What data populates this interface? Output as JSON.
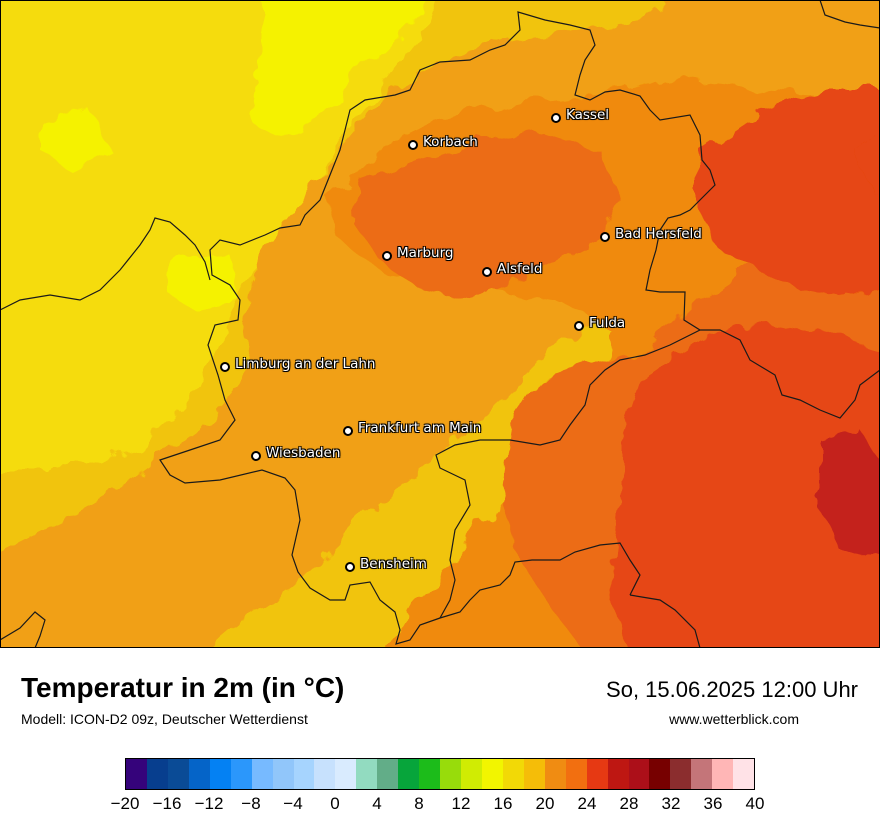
{
  "map": {
    "colors": {
      "yellow_light": "#f5f200",
      "yellow": "#f5dc0c",
      "gold": "#f1c40f",
      "orange_light": "#f1a012",
      "orange": "#f08a10",
      "orange_dark": "#ec6c12",
      "red_orange": "#e64612",
      "red": "#c4201a",
      "dark_red": "#a01418",
      "border": "#1a1a1a"
    },
    "cities": [
      {
        "name": "Kassel"
      },
      {
        "name": "Korbach"
      },
      {
        "name": "Bad Hersfeld"
      },
      {
        "name": "Marburg"
      },
      {
        "name": "Alsfeld"
      },
      {
        "name": "Fulda"
      },
      {
        "name": "Limburg an der Lahn"
      },
      {
        "name": "Frankfurt am Main"
      },
      {
        "name": "Wiesbaden"
      },
      {
        "name": "Bensheim"
      }
    ]
  },
  "footer": {
    "title": "Temperatur in 2m (in °C)",
    "model": "Modell: ICON-D2 09z, Deutscher Wetterdienst",
    "datetime": "So, 15.06.2025 12:00 Uhr",
    "website": "www.wetterblick.com"
  },
  "legend": {
    "min": -20,
    "max": 40,
    "tick_labels": [
      "−20",
      "−16",
      "−12",
      "−8",
      "−4",
      "0",
      "4",
      "8",
      "12",
      "16",
      "20",
      "24",
      "28",
      "32",
      "36",
      "40"
    ],
    "colors": [
      "#35037b",
      "#073e8e",
      "#0a4b96",
      "#0564c8",
      "#0481f3",
      "#2b97fb",
      "#77baff",
      "#91c6fa",
      "#a6d4fe",
      "#c7e1fd",
      "#d9ebfe",
      "#92dbc0",
      "#62ad88",
      "#07a53b",
      "#1cbc1a",
      "#98dc0b",
      "#d0ec03",
      "#f2f500",
      "#f2d906",
      "#f5bd08",
      "#f08c12",
      "#f26f10",
      "#e63913",
      "#be1712",
      "#ac0f19",
      "#770000",
      "#8b2d2e",
      "#c47579",
      "#ffb6b6",
      "#ffe2e7"
    ]
  }
}
